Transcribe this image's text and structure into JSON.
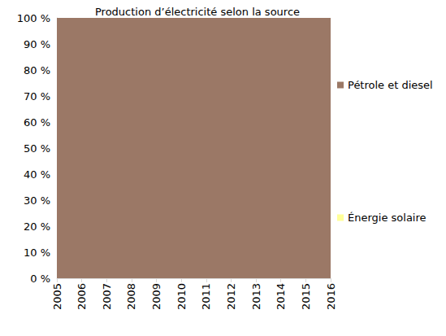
{
  "chart_data": {
    "type": "area",
    "title": "Production d’électricité selon la source",
    "categories": [
      "2005",
      "2006",
      "2007",
      "2008",
      "2009",
      "2010",
      "2011",
      "2012",
      "2013",
      "2014",
      "2015",
      "2016"
    ],
    "series": [
      {
        "name": "Pétrole et diesel",
        "color": "#9b7866",
        "values": [
          100,
          100,
          100,
          100,
          100,
          100,
          100,
          100,
          100,
          100,
          100,
          100
        ]
      },
      {
        "name": "Énergie solaire",
        "color": "#ffff99",
        "values": [
          0,
          0,
          0,
          0,
          0,
          0,
          0,
          0,
          0,
          0,
          0,
          0
        ]
      }
    ],
    "ylim": [
      0,
      100
    ],
    "yticks": [
      {
        "value": 0,
        "label": "0 %"
      },
      {
        "value": 10,
        "label": "10 %"
      },
      {
        "value": 20,
        "label": "20 %"
      },
      {
        "value": 30,
        "label": "30 %"
      },
      {
        "value": 40,
        "label": "40 %"
      },
      {
        "value": 50,
        "label": "50 %"
      },
      {
        "value": 60,
        "label": "60 %"
      },
      {
        "value": 70,
        "label": "70 %"
      },
      {
        "value": 80,
        "label": "80 %"
      },
      {
        "value": 90,
        "label": "90 %"
      },
      {
        "value": 100,
        "label": "100 %"
      }
    ],
    "stacked": true,
    "grid": false,
    "legend": "right",
    "data_labels": false
  }
}
